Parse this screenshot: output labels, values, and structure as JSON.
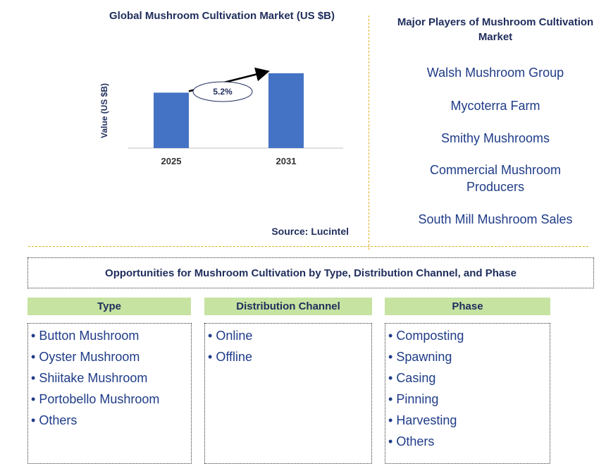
{
  "chart_data": {
    "type": "bar",
    "title": "Global Mushroom Cultivation Market (US $B)",
    "ylabel": "Value (US $B)",
    "xlabel": "",
    "categories": [
      "2025",
      "2031"
    ],
    "values": [
      1.0,
      1.35
    ],
    "ylim": [
      0,
      1.45
    ],
    "annotation": "5.2%",
    "bar_color": "#4472c4",
    "source": "Source: Lucintel"
  },
  "players": {
    "title": "Major Players of Mushroom Cultivation Market",
    "items": [
      "Walsh Mushroom Group",
      "Mycoterra Farm",
      "Smithy Mushrooms",
      "Commercial Mushroom Producers",
      "South Mill Mushroom Sales"
    ]
  },
  "opportunities": {
    "title": "Opportunities for Mushroom Cultivation by Type, Distribution Channel, and Phase",
    "columns": [
      {
        "header": "Type",
        "items": [
          "Button Mushroom",
          "Oyster Mushroom",
          "Shiitake Mushroom",
          "Portobello Mushroom",
          "Others"
        ]
      },
      {
        "header": "Distribution Channel",
        "items": [
          "Online",
          "Offline"
        ]
      },
      {
        "header": "Phase",
        "items": [
          "Composting",
          "Spawning",
          "Casing",
          "Pinning",
          "Harvesting",
          "Others"
        ]
      }
    ],
    "header_color": "#c6e3a1"
  },
  "colors": {
    "title_text": "#1f2d5c",
    "body_text": "#1f3c88",
    "divider": "#e0b020"
  }
}
